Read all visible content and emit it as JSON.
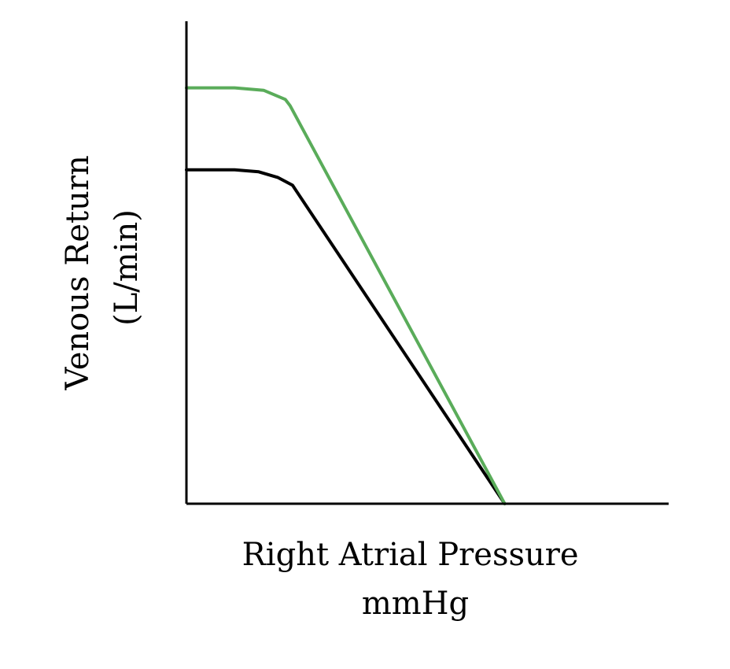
{
  "chart_data": {
    "type": "line",
    "title": "",
    "xlabel_lines": [
      "Right Atrial Pressure",
      "mmHg"
    ],
    "ylabel_lines": [
      "Venous Return",
      "(L/min)"
    ],
    "xlim": [
      0,
      10
    ],
    "ylim": [
      0,
      10
    ],
    "grid": false,
    "legend": "none",
    "axis_ticks": false,
    "series": [
      {
        "color": "#000000",
        "x": [
          0,
          1.0,
          1.5,
          1.9,
          2.2,
          6.6
        ],
        "y": [
          6.92,
          6.92,
          6.88,
          6.76,
          6.6,
          0
        ]
      },
      {
        "color": "#5aac5a",
        "x": [
          0,
          1.0,
          1.6,
          2.05,
          2.15,
          6.6
        ],
        "y": [
          8.62,
          8.62,
          8.57,
          8.38,
          8.25,
          0
        ]
      }
    ]
  }
}
